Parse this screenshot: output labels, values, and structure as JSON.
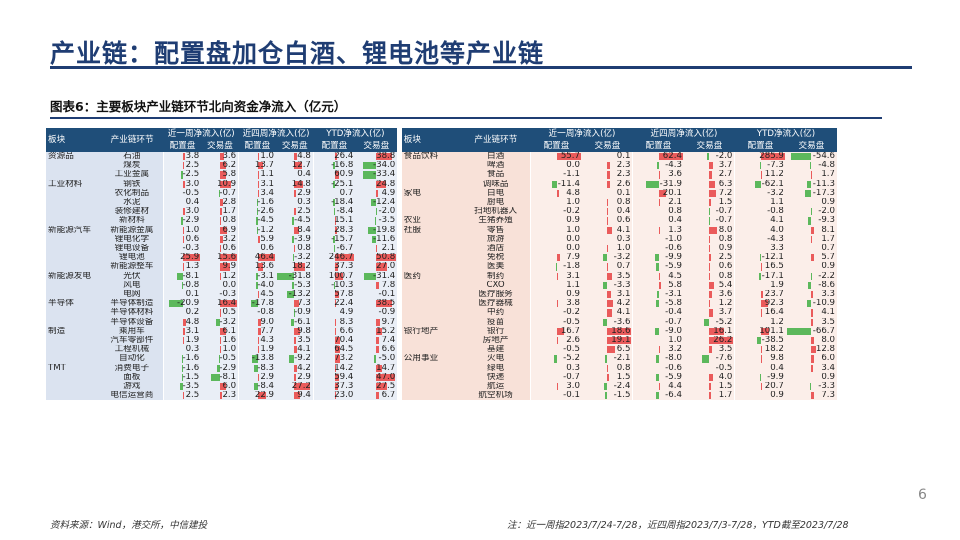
{
  "title": "产业链：配置盘加仓白酒、锂电池等产业链",
  "caption": "图表6：主要板块产业链环节北向资金净流入（亿元）",
  "headers": {
    "sector": "板块",
    "segment": "产业链环节",
    "w1": "近一周净流入(亿)",
    "w4": "近四周净流入(亿)",
    "ytd": "YTD净流入(亿)",
    "alloc": "配置盘",
    "trade": "交易盘"
  },
  "colors": {
    "positive": "#ea5b5b",
    "negative": "#5cb85c",
    "header": "#1f4e79",
    "title": "#1f3d73"
  },
  "left_rows": [
    {
      "sector": "资源品",
      "seg": "石油",
      "v": [
        3.8,
        3.6,
        1.0,
        4.8,
        26.4,
        38.8
      ]
    },
    {
      "sector": "",
      "seg": "煤炭",
      "v": [
        2.5,
        6.2,
        13.7,
        12.7,
        -16.8,
        -34.0
      ]
    },
    {
      "sector": "",
      "seg": "工业金属",
      "v": [
        -2.5,
        5.8,
        1.1,
        0.4,
        60.9,
        -33.4
      ]
    },
    {
      "sector": "工业材料",
      "seg": "钢铁",
      "v": [
        3.0,
        10.9,
        3.1,
        14.8,
        -25.1,
        24.8
      ]
    },
    {
      "sector": "",
      "seg": "农化制品",
      "v": [
        -0.5,
        -0.7,
        3.4,
        2.9,
        0.7,
        4.9
      ]
    },
    {
      "sector": "",
      "seg": "水泥",
      "v": [
        0.4,
        2.8,
        -1.6,
        0.3,
        -18.4,
        -12.4
      ]
    },
    {
      "sector": "",
      "seg": "装修建材",
      "v": [
        3.0,
        1.7,
        -2.6,
        2.5,
        -8.4,
        -2.0
      ]
    },
    {
      "sector": "",
      "seg": "新材料",
      "v": [
        -2.9,
        0.8,
        -4.5,
        -4.5,
        15.1,
        -3.5
      ]
    },
    {
      "sector": "新能源汽车",
      "seg": "新能源金属",
      "v": [
        1.0,
        6.9,
        -1.2,
        8.4,
        28.3,
        -19.8
      ]
    },
    {
      "sector": "",
      "seg": "锂电化学",
      "v": [
        0.6,
        3.2,
        5.9,
        -3.9,
        -15.7,
        -11.6
      ]
    },
    {
      "sector": "",
      "seg": "锂电设备",
      "v": [
        -0.3,
        0.6,
        0.6,
        0.8,
        -6.7,
        2.1
      ]
    },
    {
      "sector": "",
      "seg": "锂电池",
      "v": [
        25.9,
        15.6,
        46.4,
        -3.2,
        246.7,
        50.8
      ]
    },
    {
      "sector": "",
      "seg": "新能源整车",
      "v": [
        1.3,
        9.9,
        13.6,
        18.2,
        37.3,
        27.0
      ]
    },
    {
      "sector": "新能源发电",
      "seg": "光伏",
      "v": [
        -8.1,
        1.2,
        -3.1,
        -31.8,
        100.7,
        -31.4
      ]
    },
    {
      "sector": "",
      "seg": "风电",
      "v": [
        -0.8,
        0.0,
        -4.0,
        -5.3,
        -10.3,
        7.8
      ]
    },
    {
      "sector": "",
      "seg": "电网",
      "v": [
        0.1,
        -0.3,
        4.5,
        -13.2,
        57.8,
        -0.1
      ]
    },
    {
      "sector": "半导体",
      "seg": "半导体制造",
      "v": [
        -20.9,
        16.4,
        -17.8,
        7.3,
        22.4,
        38.5
      ]
    },
    {
      "sector": "",
      "seg": "半导体材料",
      "v": [
        0.2,
        0.5,
        -0.8,
        -0.9,
        4.9,
        -0.9
      ]
    },
    {
      "sector": "",
      "seg": "半导体设备",
      "v": [
        4.8,
        -3.2,
        9.0,
        -6.1,
        8.3,
        9.7
      ]
    },
    {
      "sector": "制造",
      "seg": "乘用车",
      "v": [
        3.1,
        6.1,
        7.7,
        9.8,
        6.6,
        15.2
      ]
    },
    {
      "sector": "",
      "seg": "汽车零部件",
      "v": [
        1.9,
        1.6,
        4.3,
        3.5,
        70.4,
        7.4
      ]
    },
    {
      "sector": "",
      "seg": "工程机械",
      "v": [
        0.3,
        1.0,
        1.9,
        4.1,
        64.5,
        6.6
      ]
    },
    {
      "sector": "",
      "seg": "自动化",
      "v": [
        -1.6,
        -0.5,
        -13.8,
        -9.2,
        73.2,
        -5.0
      ]
    },
    {
      "sector": "TMT",
      "seg": "消费电子",
      "v": [
        -1.6,
        -2.9,
        -8.3,
        4.2,
        14.2,
        14.7
      ]
    },
    {
      "sector": "",
      "seg": "面板",
      "v": [
        -1.5,
        -8.1,
        2.9,
        2.9,
        59.4,
        47.0
      ]
    },
    {
      "sector": "",
      "seg": "游戏",
      "v": [
        -3.5,
        6.0,
        -8.4,
        27.2,
        37.3,
        27.5
      ]
    },
    {
      "sector": "",
      "seg": "电信运营商",
      "v": [
        2.5,
        2.3,
        22.9,
        9.4,
        23.0,
        6.7
      ]
    }
  ],
  "right_rows": [
    {
      "sector": "食品饮料",
      "seg": "白酒",
      "v": [
        55.7,
        0.1,
        62.4,
        -2.0,
        285.9,
        -54.6
      ]
    },
    {
      "sector": "",
      "seg": "啤酒",
      "v": [
        0.0,
        2.3,
        -4.3,
        3.7,
        -7.3,
        -4.8
      ]
    },
    {
      "sector": "",
      "seg": "食品",
      "v": [
        -1.1,
        2.3,
        3.6,
        2.7,
        11.2,
        1.7
      ]
    },
    {
      "sector": "",
      "seg": "调味品",
      "v": [
        -11.4,
        2.6,
        -31.9,
        6.3,
        -62.1,
        -11.3
      ]
    },
    {
      "sector": "家电",
      "seg": "白电",
      "v": [
        4.8,
        0.1,
        20.1,
        7.2,
        -3.2,
        -17.3
      ]
    },
    {
      "sector": "",
      "seg": "厨电",
      "v": [
        1.0,
        0.8,
        2.1,
        1.5,
        1.1,
        0.9
      ]
    },
    {
      "sector": "",
      "seg": "扫地机器人",
      "v": [
        -0.2,
        0.4,
        0.8,
        -0.7,
        -0.8,
        -2.0
      ]
    },
    {
      "sector": "农业",
      "seg": "生猪养殖",
      "v": [
        0.9,
        0.6,
        0.4,
        -0.7,
        4.1,
        -9.3
      ]
    },
    {
      "sector": "社服",
      "seg": "零售",
      "v": [
        1.0,
        4.1,
        1.3,
        8.0,
        4.0,
        8.1
      ]
    },
    {
      "sector": "",
      "seg": "旅游",
      "v": [
        0.0,
        0.3,
        -1.0,
        0.8,
        -4.3,
        1.7
      ]
    },
    {
      "sector": "",
      "seg": "酒店",
      "v": [
        0.0,
        1.0,
        -0.6,
        0.9,
        3.3,
        0.7
      ]
    },
    {
      "sector": "",
      "seg": "免税",
      "v": [
        7.9,
        -3.2,
        -9.9,
        2.5,
        -12.1,
        5.7
      ]
    },
    {
      "sector": "",
      "seg": "医美",
      "v": [
        -1.8,
        0.7,
        -5.9,
        0.6,
        16.5,
        0.9
      ]
    },
    {
      "sector": "医药",
      "seg": "制药",
      "v": [
        3.1,
        3.5,
        4.5,
        0.8,
        -17.1,
        -2.2
      ]
    },
    {
      "sector": "",
      "seg": "CXO",
      "v": [
        1.1,
        -3.3,
        5.8,
        5.4,
        1.9,
        -8.6
      ]
    },
    {
      "sector": "",
      "seg": "医疗服务",
      "v": [
        0.9,
        3.1,
        -3.1,
        3.6,
        23.7,
        3.3
      ]
    },
    {
      "sector": "",
      "seg": "医疗器械",
      "v": [
        3.8,
        4.2,
        -5.8,
        1.2,
        92.3,
        -10.9
      ]
    },
    {
      "sector": "",
      "seg": "中药",
      "v": [
        -0.2,
        4.1,
        -0.4,
        3.7,
        16.4,
        4.1
      ]
    },
    {
      "sector": "",
      "seg": "疫苗",
      "v": [
        -0.5,
        -3.6,
        -0.7,
        -5.2,
        1.2,
        3.5
      ]
    },
    {
      "sector": "银行地产",
      "seg": "银行",
      "v": [
        16.7,
        18.6,
        -9.0,
        16.1,
        101.1,
        -66.7
      ]
    },
    {
      "sector": "",
      "seg": "房地产",
      "v": [
        2.6,
        19.1,
        1.0,
        26.2,
        -38.5,
        8.0
      ]
    },
    {
      "sector": "",
      "seg": "基建",
      "v": [
        -0.5,
        6.5,
        3.2,
        3.5,
        18.2,
        12.8
      ]
    },
    {
      "sector": "公用事业",
      "seg": "火电",
      "v": [
        -5.2,
        -2.1,
        -8.0,
        -7.6,
        9.8,
        6.0
      ]
    },
    {
      "sector": "",
      "seg": "绿电",
      "v": [
        0.3,
        0.8,
        -0.6,
        -0.5,
        0.4,
        3.4
      ]
    },
    {
      "sector": "",
      "seg": "快递",
      "v": [
        -0.7,
        1.5,
        -5.9,
        4.0,
        -9.9,
        0.9
      ]
    },
    {
      "sector": "",
      "seg": "航运",
      "v": [
        3.0,
        -2.4,
        4.4,
        1.5,
        20.7,
        -3.3
      ]
    },
    {
      "sector": "",
      "seg": "航空机场",
      "v": [
        -0.1,
        -1.5,
        -6.4,
        1.7,
        0.9,
        7.3
      ]
    }
  ],
  "source": "资料来源：Wind，港交所，中信建投",
  "note": "注：近一周指2023/7/24-7/28，近四周指2023/7/3-7/28，YTD截至2023/7/28",
  "page_number": "6"
}
